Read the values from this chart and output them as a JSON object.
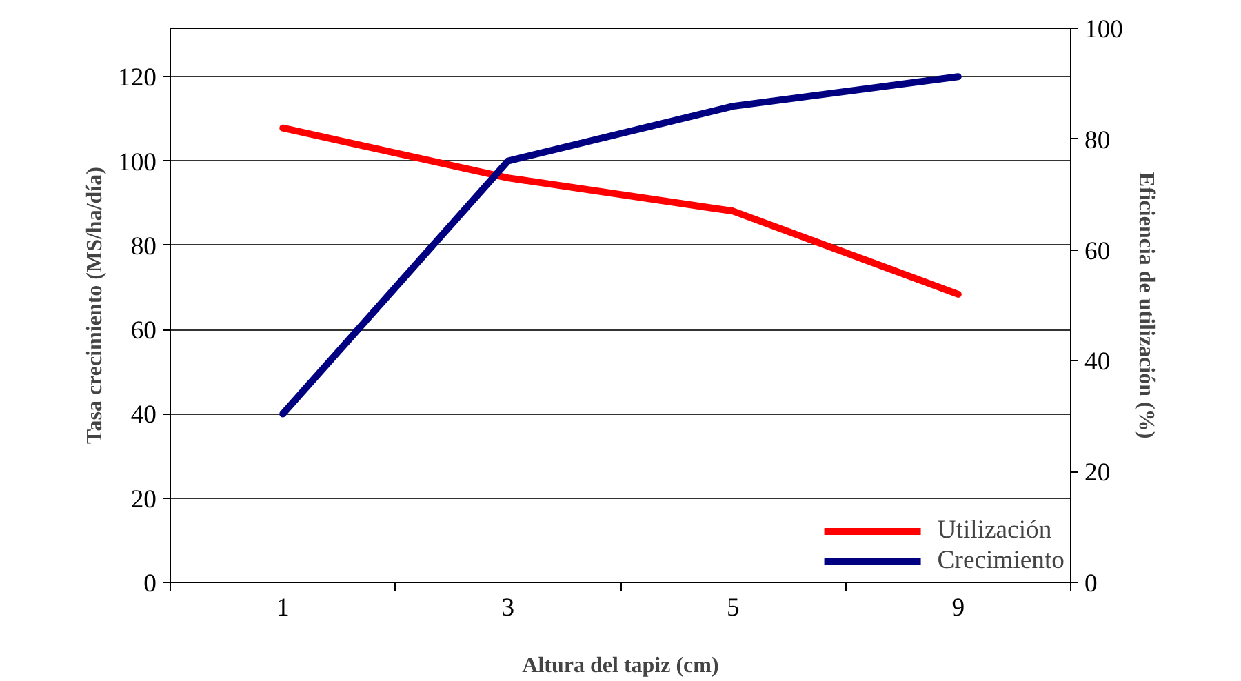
{
  "chart_data": {
    "type": "line",
    "xlabel": "Altura del tapiz (cm)",
    "ylabel": "Tasa crecimiento (MS/ha/día)",
    "y2label": "Eficiencia de utilización (%)",
    "categories": [
      "1",
      "3",
      "5",
      "9"
    ],
    "series": [
      {
        "name": "Utilización",
        "color": "#ff0000",
        "axis": "y2",
        "values": [
          82,
          73,
          67,
          52
        ]
      },
      {
        "name": "Crecimiento",
        "color": "#000080",
        "values": [
          40,
          100,
          113,
          120
        ]
      }
    ],
    "ylim": [
      0,
      131.5
    ],
    "yticks": [
      0,
      20,
      40,
      60,
      80,
      100,
      120
    ],
    "y2lim": [
      0,
      100
    ],
    "y2ticks": [
      0,
      20,
      40,
      60,
      80,
      100
    ],
    "grid": "y",
    "legend": "bottom right",
    "marker": "none",
    "line_style": "solid"
  }
}
